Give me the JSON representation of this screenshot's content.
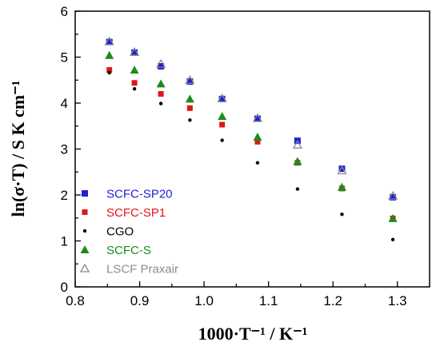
{
  "chart_data": {
    "type": "scatter",
    "xlabel": "1000·T⁻¹ / K⁻¹",
    "ylabel": "ln(σ·T) / S K cm⁻¹",
    "xlim": [
      0.8,
      1.35
    ],
    "ylim": [
      0,
      6
    ],
    "x_ticks": [
      "0.8",
      "0.9",
      "1.0",
      "1.1",
      "1.2",
      "1.3"
    ],
    "y_ticks": [
      "0",
      "1",
      "2",
      "3",
      "4",
      "5",
      "6"
    ],
    "grid": false,
    "legend_position": "left-bottom",
    "series": [
      {
        "name": "SCFC-SP20",
        "color": "#1f1fd6",
        "marker": "square",
        "x": [
          0.853,
          0.892,
          0.933,
          0.978,
          1.028,
          1.083,
          1.145,
          1.214,
          1.293
        ],
        "y": [
          5.33,
          5.1,
          4.8,
          4.47,
          4.09,
          3.66,
          3.18,
          2.57,
          1.95
        ]
      },
      {
        "name": "SCFC-SP1",
        "color": "#e0161b",
        "marker": "square-small",
        "x": [
          0.853,
          0.892,
          0.933,
          0.978,
          1.028,
          1.083,
          1.145,
          1.214,
          1.293
        ],
        "y": [
          4.72,
          4.44,
          4.2,
          3.89,
          3.53,
          3.16,
          2.7,
          2.14,
          1.49
        ]
      },
      {
        "name": "CGO",
        "color": "#000000",
        "marker": "dot",
        "x": [
          0.853,
          0.892,
          0.933,
          0.978,
          1.028,
          1.083,
          1.145,
          1.214,
          1.293
        ],
        "y": [
          4.66,
          4.31,
          3.99,
          3.63,
          3.19,
          2.7,
          2.13,
          1.58,
          1.03
        ]
      },
      {
        "name": "SCFC-S",
        "color": "#1c8c1c",
        "marker": "triangle",
        "x": [
          0.853,
          0.892,
          0.933,
          0.978,
          1.028,
          1.083,
          1.145,
          1.214,
          1.293
        ],
        "y": [
          5.04,
          4.72,
          4.42,
          4.09,
          3.71,
          3.26,
          2.73,
          2.17,
          1.49
        ]
      },
      {
        "name": "LSCF Praxair",
        "color": "#8c8c8c",
        "marker": "triangle-open",
        "x": [
          0.853,
          0.892,
          0.933,
          0.978,
          1.028,
          1.083,
          1.145,
          1.214,
          1.293
        ],
        "y": [
          5.34,
          5.11,
          4.85,
          4.5,
          4.1,
          3.67,
          3.09,
          2.53,
          1.98
        ]
      }
    ]
  }
}
